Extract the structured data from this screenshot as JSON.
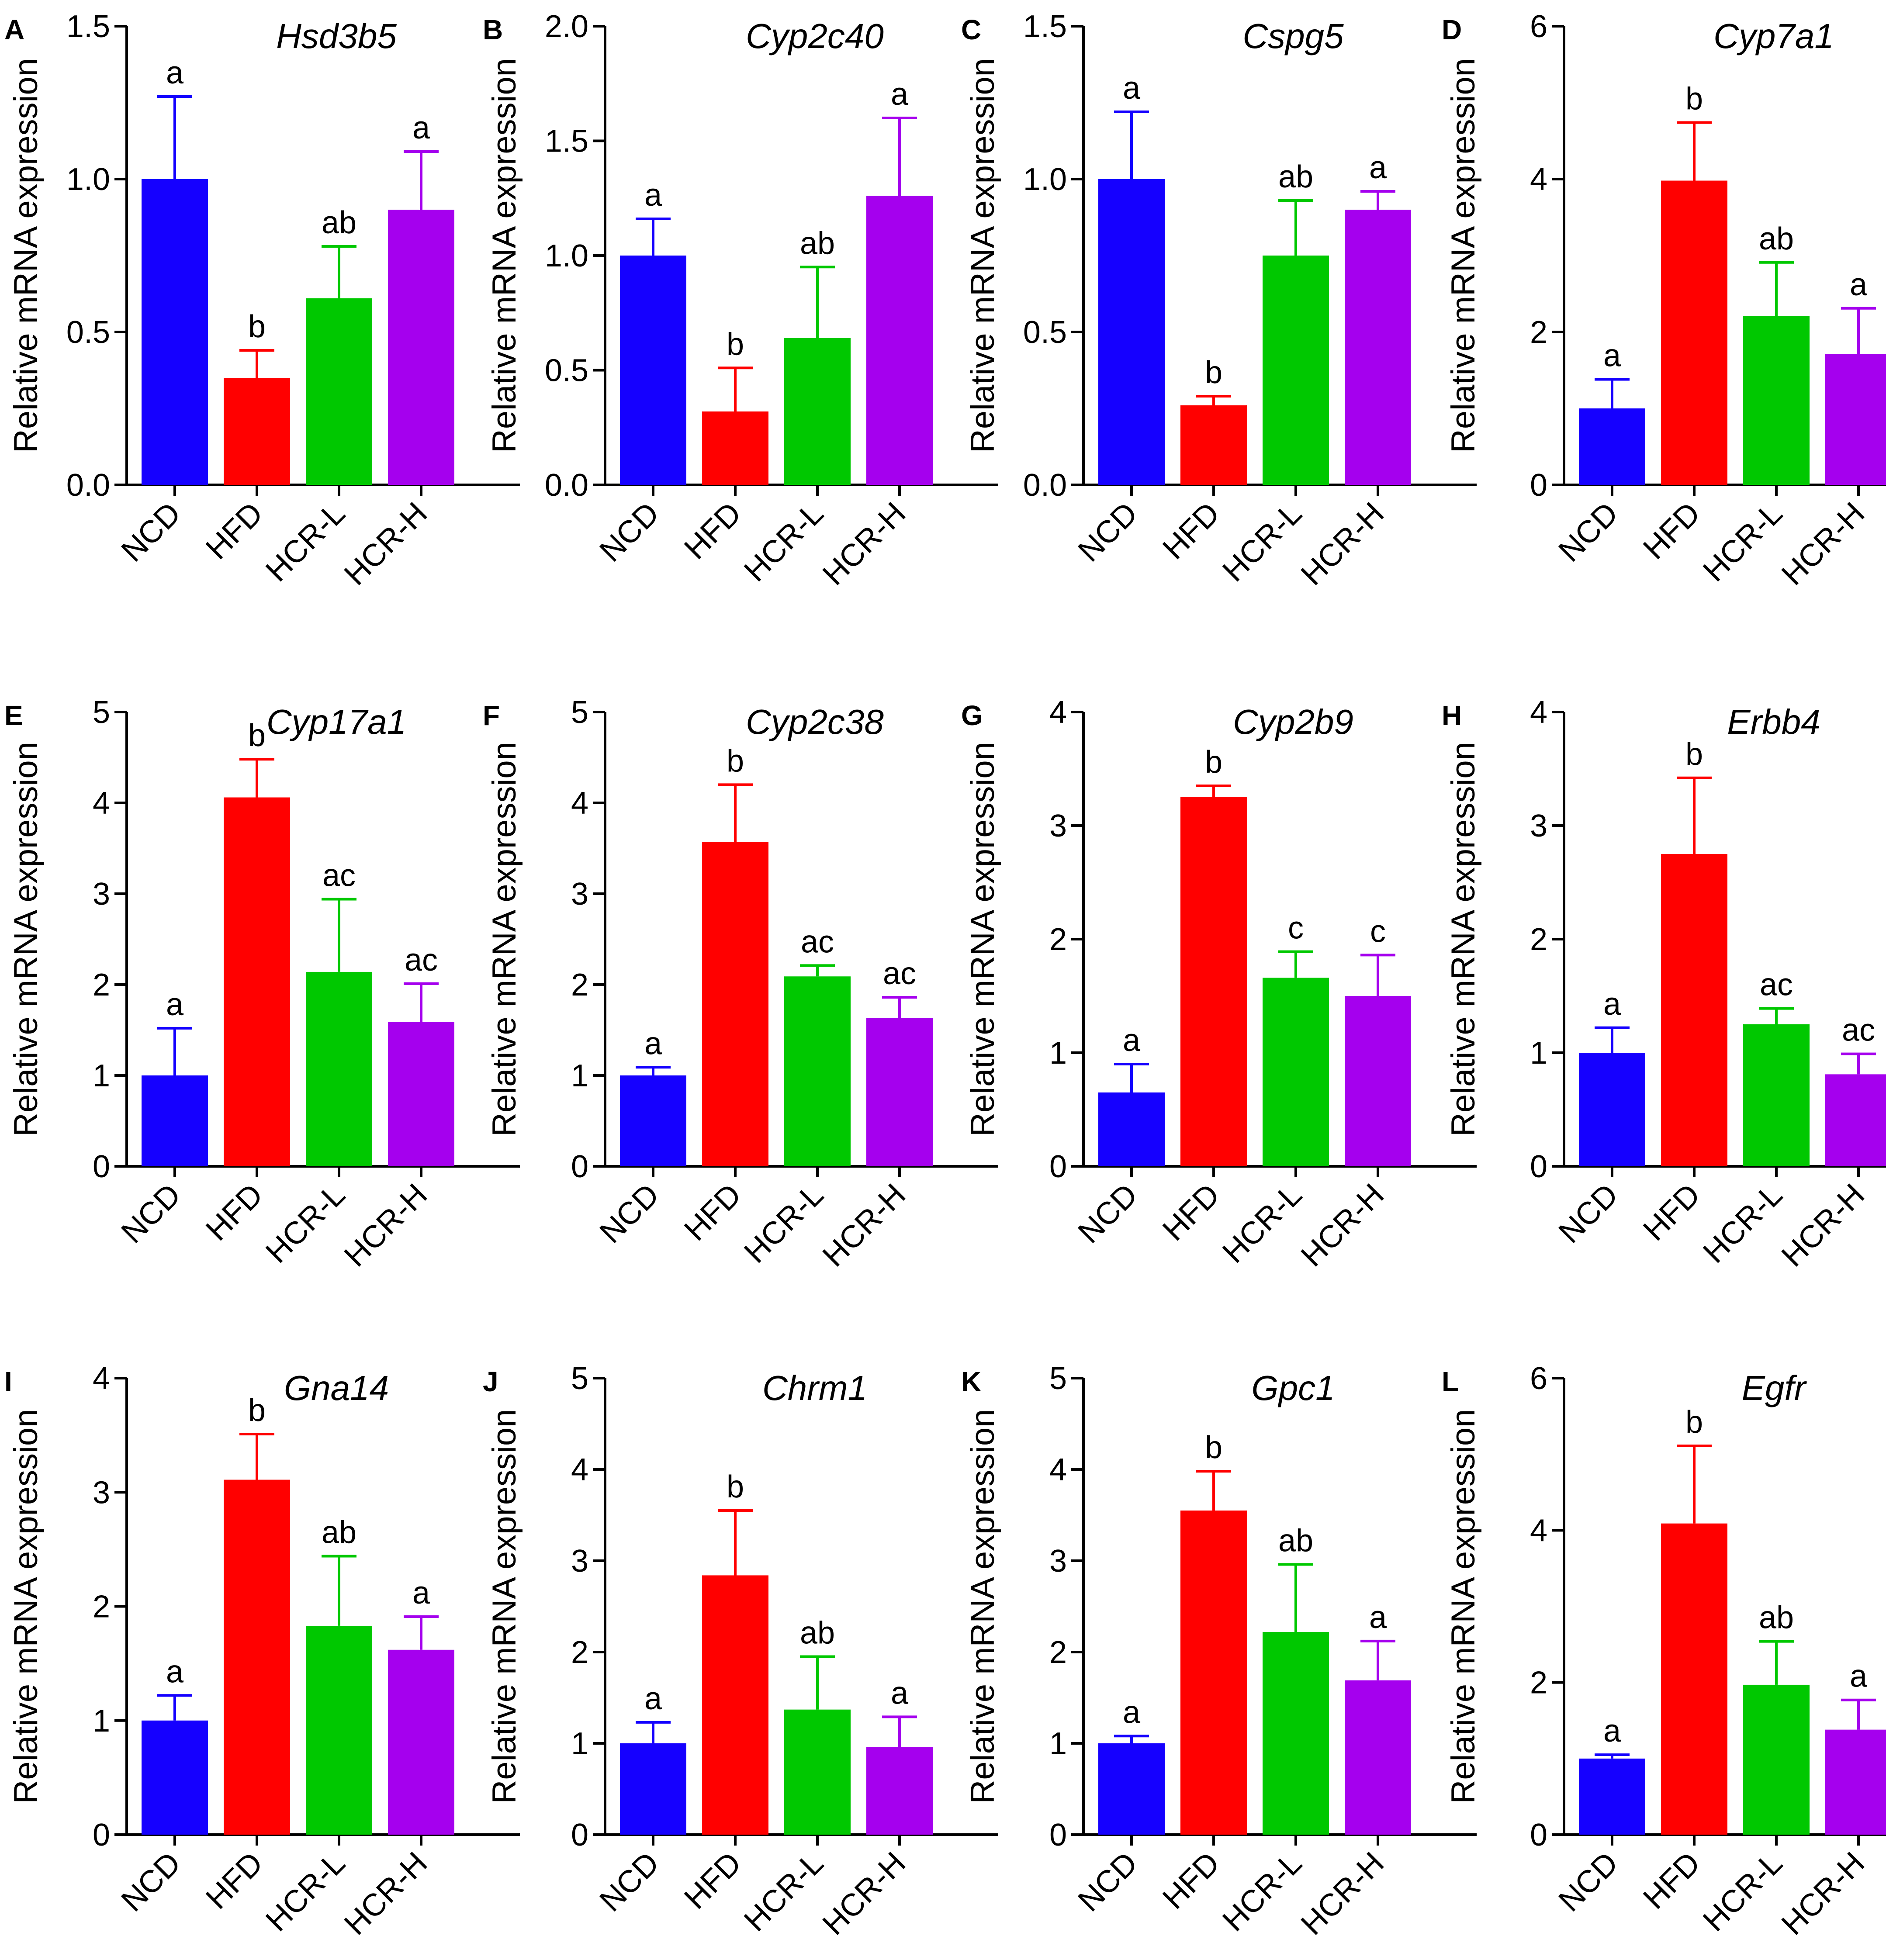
{
  "figure": {
    "groups": [
      "NCD",
      "HFD",
      "HCR-L",
      "HCR-H"
    ],
    "colors": {
      "NCD": "#1500ff",
      "HFD": "#ff0000",
      "HCR-L": "#00c800",
      "HCR-H": "#a500ee"
    },
    "ylabel": "Relative mRNA expression"
  },
  "chart_data": [
    {
      "panel": "A",
      "type": "bar",
      "title": "Hsd3b5",
      "categories": [
        "NCD",
        "HFD",
        "HCR-L",
        "HCR-H"
      ],
      "values": [
        1.0,
        0.35,
        0.61,
        0.9
      ],
      "errors": [
        0.27,
        0.09,
        0.17,
        0.19
      ],
      "letters": [
        "a",
        "b",
        "ab",
        "a"
      ],
      "ylim": [
        0,
        1.5
      ],
      "yticks": [
        "0.0",
        "0.5",
        "1.0",
        "1.5"
      ],
      "ylabel": "Relative mRNA expression"
    },
    {
      "panel": "B",
      "type": "bar",
      "title": "Cyp2c40",
      "categories": [
        "NCD",
        "HFD",
        "HCR-L",
        "HCR-H"
      ],
      "values": [
        1.0,
        0.32,
        0.64,
        1.26
      ],
      "errors": [
        0.16,
        0.19,
        0.31,
        0.34
      ],
      "letters": [
        "a",
        "b",
        "ab",
        "a"
      ],
      "ylim": [
        0,
        2.0
      ],
      "yticks": [
        "0.0",
        "0.5",
        "1.0",
        "1.5",
        "2.0"
      ],
      "ylabel": "Relative mRNA expression"
    },
    {
      "panel": "C",
      "type": "bar",
      "title": "Cspg5",
      "categories": [
        "NCD",
        "HFD",
        "HCR-L",
        "HCR-H"
      ],
      "values": [
        1.0,
        0.26,
        0.75,
        0.9
      ],
      "errors": [
        0.22,
        0.03,
        0.18,
        0.06
      ],
      "letters": [
        "a",
        "b",
        "ab",
        "a"
      ],
      "ylim": [
        0,
        1.5
      ],
      "yticks": [
        "0.0",
        "0.5",
        "1.0",
        "1.5"
      ],
      "ylabel": "Relative mRNA expression"
    },
    {
      "panel": "D",
      "type": "bar",
      "title": "Cyp7a1",
      "categories": [
        "NCD",
        "HFD",
        "HCR-L",
        "HCR-H"
      ],
      "values": [
        1.0,
        3.98,
        2.21,
        1.71
      ],
      "errors": [
        0.38,
        0.76,
        0.7,
        0.6
      ],
      "letters": [
        "a",
        "b",
        "ab",
        "a"
      ],
      "ylim": [
        0,
        6
      ],
      "yticks": [
        "0",
        "2",
        "4",
        "6"
      ],
      "ylabel": "Relative mRNA expression"
    },
    {
      "panel": "E",
      "type": "bar",
      "title": "Cyp17a1",
      "categories": [
        "NCD",
        "HFD",
        "HCR-L",
        "HCR-H"
      ],
      "values": [
        1.0,
        4.06,
        2.14,
        1.59
      ],
      "errors": [
        0.52,
        0.42,
        0.8,
        0.42
      ],
      "letters": [
        "a",
        "b",
        "ac",
        "ac"
      ],
      "ylim": [
        0,
        5
      ],
      "yticks": [
        "0",
        "1",
        "2",
        "3",
        "4",
        "5"
      ],
      "ylabel": "Relative mRNA expression"
    },
    {
      "panel": "F",
      "type": "bar",
      "title": "Cyp2c38",
      "categories": [
        "NCD",
        "HFD",
        "HCR-L",
        "HCR-H"
      ],
      "values": [
        1.0,
        3.57,
        2.09,
        1.63
      ],
      "errors": [
        0.09,
        0.63,
        0.12,
        0.23
      ],
      "letters": [
        "a",
        "b",
        "ac",
        "ac"
      ],
      "ylim": [
        0,
        5
      ],
      "yticks": [
        "0",
        "1",
        "2",
        "3",
        "4",
        "5"
      ],
      "ylabel": "Relative mRNA expression"
    },
    {
      "panel": "G",
      "type": "bar",
      "title": "Cyp2b9",
      "categories": [
        "NCD",
        "HFD",
        "HCR-L",
        "HCR-H"
      ],
      "values": [
        0.65,
        3.25,
        1.66,
        1.5
      ],
      "errors": [
        0.25,
        0.1,
        0.23,
        0.36
      ],
      "letters": [
        "a",
        "b",
        "c",
        "c"
      ],
      "ylim": [
        0,
        4
      ],
      "yticks": [
        "0",
        "1",
        "2",
        "3",
        "4"
      ],
      "ylabel": "Relative mRNA expression"
    },
    {
      "panel": "H",
      "type": "bar",
      "title": "Erbb4",
      "categories": [
        "NCD",
        "HFD",
        "HCR-L",
        "HCR-H"
      ],
      "values": [
        1.0,
        2.75,
        1.25,
        0.81
      ],
      "errors": [
        0.22,
        0.67,
        0.14,
        0.18
      ],
      "letters": [
        "a",
        "b",
        "ac",
        "ac"
      ],
      "ylim": [
        0,
        4
      ],
      "yticks": [
        "0",
        "1",
        "2",
        "3",
        "4"
      ],
      "ylabel": "Relative mRNA expression"
    },
    {
      "panel": "I",
      "type": "bar",
      "title": "Gna14",
      "categories": [
        "NCD",
        "HFD",
        "HCR-L",
        "HCR-H"
      ],
      "values": [
        1.0,
        3.11,
        1.83,
        1.62
      ],
      "errors": [
        0.22,
        0.4,
        0.61,
        0.29
      ],
      "letters": [
        "a",
        "b",
        "ab",
        "a"
      ],
      "ylim": [
        0,
        4
      ],
      "yticks": [
        "0",
        "1",
        "2",
        "3",
        "4"
      ],
      "ylabel": "Relative mRNA expression"
    },
    {
      "panel": "J",
      "type": "bar",
      "title": "Chrm1",
      "categories": [
        "NCD",
        "HFD",
        "HCR-L",
        "HCR-H"
      ],
      "values": [
        1.0,
        2.84,
        1.37,
        0.96
      ],
      "errors": [
        0.23,
        0.71,
        0.58,
        0.33
      ],
      "letters": [
        "a",
        "b",
        "ab",
        "a"
      ],
      "ylim": [
        0,
        5
      ],
      "yticks": [
        "0",
        "1",
        "2",
        "3",
        "4",
        "5"
      ],
      "ylabel": "Relative mRNA expression"
    },
    {
      "panel": "K",
      "type": "bar",
      "title": "Gpc1",
      "categories": [
        "NCD",
        "HFD",
        "HCR-L",
        "HCR-H"
      ],
      "values": [
        1.0,
        3.55,
        2.22,
        1.69
      ],
      "errors": [
        0.08,
        0.43,
        0.74,
        0.43
      ],
      "letters": [
        "a",
        "b",
        "ab",
        "a"
      ],
      "ylim": [
        0,
        5
      ],
      "yticks": [
        "0",
        "1",
        "2",
        "3",
        "4",
        "5"
      ],
      "ylabel": "Relative mRNA expression"
    },
    {
      "panel": "L",
      "type": "bar",
      "title": "Egfr",
      "categories": [
        "NCD",
        "HFD",
        "HCR-L",
        "HCR-H"
      ],
      "values": [
        1.0,
        4.09,
        1.97,
        1.38
      ],
      "errors": [
        0.05,
        1.02,
        0.57,
        0.39
      ],
      "letters": [
        "a",
        "b",
        "ab",
        "a"
      ],
      "ylim": [
        0,
        6
      ],
      "yticks": [
        "0",
        "2",
        "4",
        "6"
      ],
      "ylabel": "Relative mRNA expression"
    }
  ]
}
